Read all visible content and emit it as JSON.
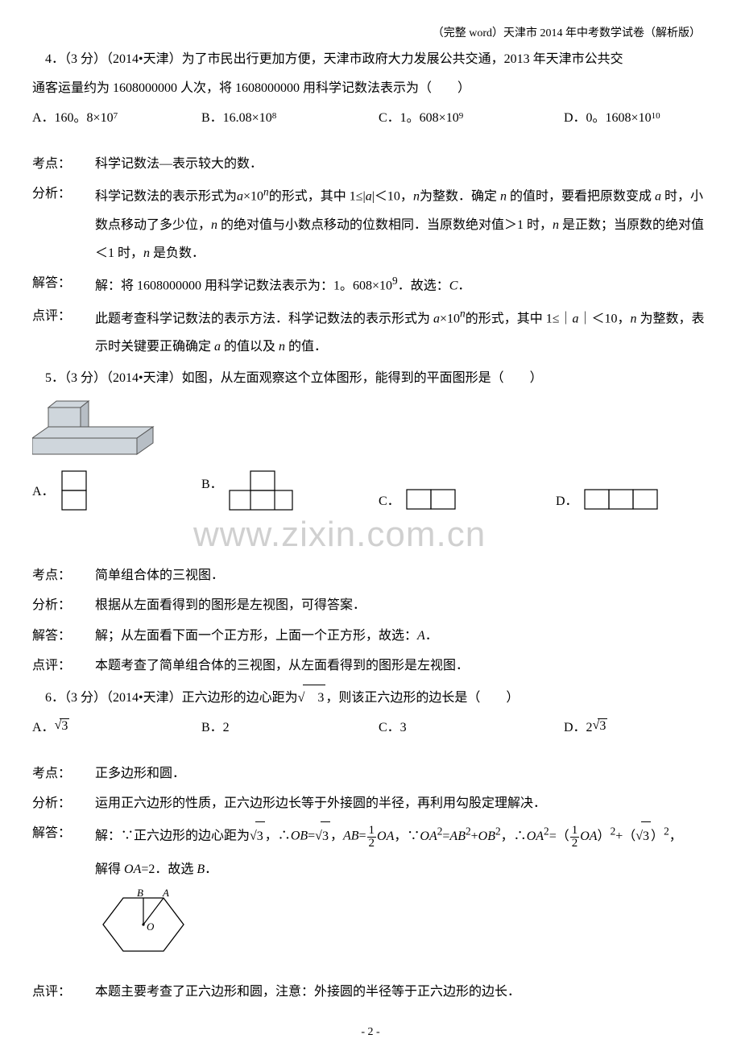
{
  "header": "（完整 word）天津市 2014 年中考数学试卷（解析版）",
  "q4": {
    "stem1": "4．（3 分）（2014•天津）为了市民出行更加方便，天津市政府大力发展公共交通，2013 年天津市公共交",
    "stem2": "通客运量约为 1608000000 人次，将 1608000000 用科学记数法表示为（　　）",
    "optA_pre": "A．160。8×10",
    "optA_sup": "7",
    "optB_pre": "B．16.08×10",
    "optB_sup": "8",
    "optC_pre": "C．1。608×10",
    "optC_sup": "9",
    "optD_pre": "D．0。1608×10",
    "optD_sup": "10",
    "ana_kp_label": "考点：",
    "ana_kp": "科学记数法—表示较大的数．",
    "ana_fx_label": "分析：",
    "ana_fx": "科学记数法的表示形式为<span class=\"italic\">a</span>×10<span class=\"italic\"><sup>n</sup></span>的形式，其中 1≤|<span class=\"italic\">a</span>|＜10，<span class=\"italic\">n</span>为整数．确定 <span class=\"italic\">n</span> 的值时，要看把原数变成 <span class=\"italic\">a</span> 时，小数点移动了多少位，<span class=\"italic\">n</span> 的绝对值与小数点移动的位数相同．当原数绝对值＞1 时，<span class=\"italic\">n</span> 是正数；当原数的绝对值＜1 时，<span class=\"italic\">n</span> 是负数．",
    "ana_jd_label": "解答：",
    "ana_jd": "解：将 1608000000 用科学记数法表示为：1。608×10<sup>9</sup>．故选：<span class=\"italic\">C</span>．",
    "ana_dp_label": "点评：",
    "ana_dp": "此题考查科学记数法的表示方法．科学记数法的表示形式为 <span class=\"italic\">a</span>×10<span class=\"italic\"><sup>n</sup></span>的形式，其中 1≤｜<span class=\"italic\">a</span>｜＜10，<span class=\"italic\">n</span> 为整数，表示时关键要正确确定 <span class=\"italic\">a</span> 的值以及 <span class=\"italic\">n</span> 的值．"
  },
  "q5": {
    "stem": "5．（3 分）（2014•天津）如图，从左面观察这个立体图形，能得到的平面图形是（　　）",
    "optA": "A．",
    "optB": "B．",
    "optC": "C．",
    "optD": "D．",
    "watermark": "www.zixin.com.cn",
    "ana_kp_label": "考点：",
    "ana_kp": "简单组合体的三视图．",
    "ana_fx_label": "分析：",
    "ana_fx": "根据从左面看得到的图形是左视图，可得答案．",
    "ana_jd_label": "解答：",
    "ana_jd": "解；从左面看下面一个正方形，上面一个正方形，故选：<span class=\"italic\">A</span>．",
    "ana_dp_label": "点评：",
    "ana_dp": "本题考查了简单组合体的三视图，从左面看得到的图形是左视图．"
  },
  "q6": {
    "stem_pre": "6．（3 分）（2014•天津）正六边形的边心距为",
    "stem_post": "，则该正六边形的边长是（　　）",
    "sqrt3": "3",
    "optA": "A．",
    "optB": "B．2",
    "optC": "C．3",
    "optD": "D．2",
    "ana_kp_label": "考点：",
    "ana_kp": "正多边形和圆．",
    "ana_fx_label": "分析：",
    "ana_fx": "运用正六边形的性质，正六边形边长等于外接圆的半径，再利用勾股定理解决．",
    "ana_jd_label": "解答：",
    "ana_jd_1": "解：∵正六边形的边心距为",
    "ana_jd_2": "，∴<span class=\"italic\">OB</span>=",
    "ana_jd_3": "，<span class=\"italic\">AB</span>=",
    "ana_jd_4": "<span class=\"italic\">OA</span>，∵<span class=\"italic\">OA</span><sup>2</sup>=<span class=\"italic\">AB</span><sup>2</sup>+<span class=\"italic\">OB</span><sup>2</sup>，∴<span class=\"italic\">OA</span><sup>2</sup>=（",
    "ana_jd_5": "<span class=\"italic\">OA</span>）<sup>2</sup>+（",
    "ana_jd_6": "）<sup>2</sup>，",
    "ana_jd_7": "解得 <span class=\"italic\">OA</span>=2．故选 <span class=\"italic\">B</span>．",
    "ana_dp_label": "点评：",
    "ana_dp": "本题主要考查了正六边形和圆，注意：外接圆的半径等于正六边形的边长．",
    "hex_B": "B",
    "hex_A": "A",
    "hex_O": "O"
  },
  "pagenum": "- 2 -"
}
